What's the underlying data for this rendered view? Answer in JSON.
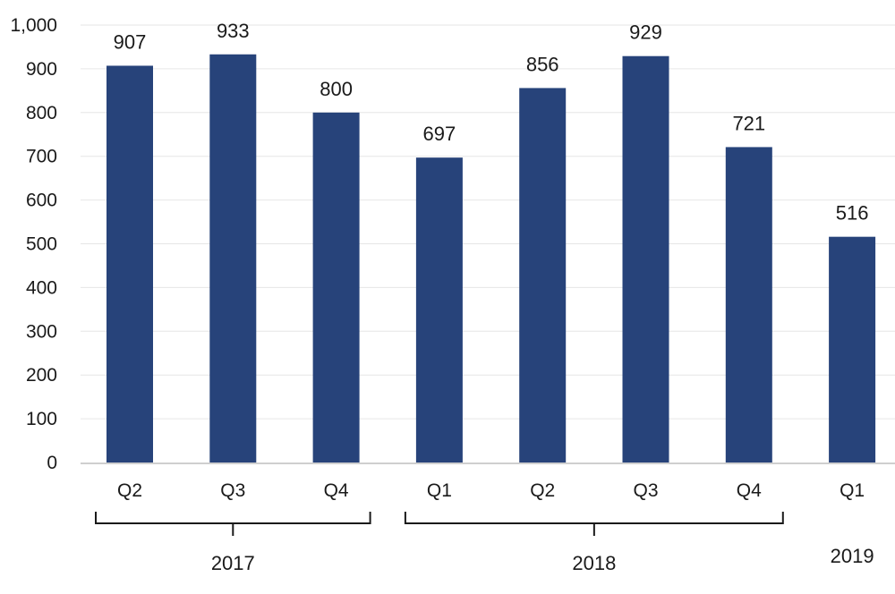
{
  "chart_data": {
    "type": "bar",
    "categories": [
      "Q2",
      "Q3",
      "Q4",
      "Q1",
      "Q2",
      "Q3",
      "Q4",
      "Q1"
    ],
    "values": [
      907,
      933,
      800,
      697,
      856,
      929,
      721,
      516
    ],
    "groups": [
      {
        "label": "2017",
        "start": 0,
        "end": 2
      },
      {
        "label": "2018",
        "start": 3,
        "end": 6
      },
      {
        "label": "2019",
        "start": 7,
        "end": 7
      }
    ],
    "y_ticks": [
      "0",
      "100",
      "200",
      "300",
      "400",
      "500",
      "600",
      "700",
      "800",
      "900",
      "1,000"
    ],
    "ylim": [
      0,
      1000
    ],
    "title": "",
    "xlabel": "",
    "ylabel": "",
    "grid": true,
    "bar_color": "#27437a"
  }
}
